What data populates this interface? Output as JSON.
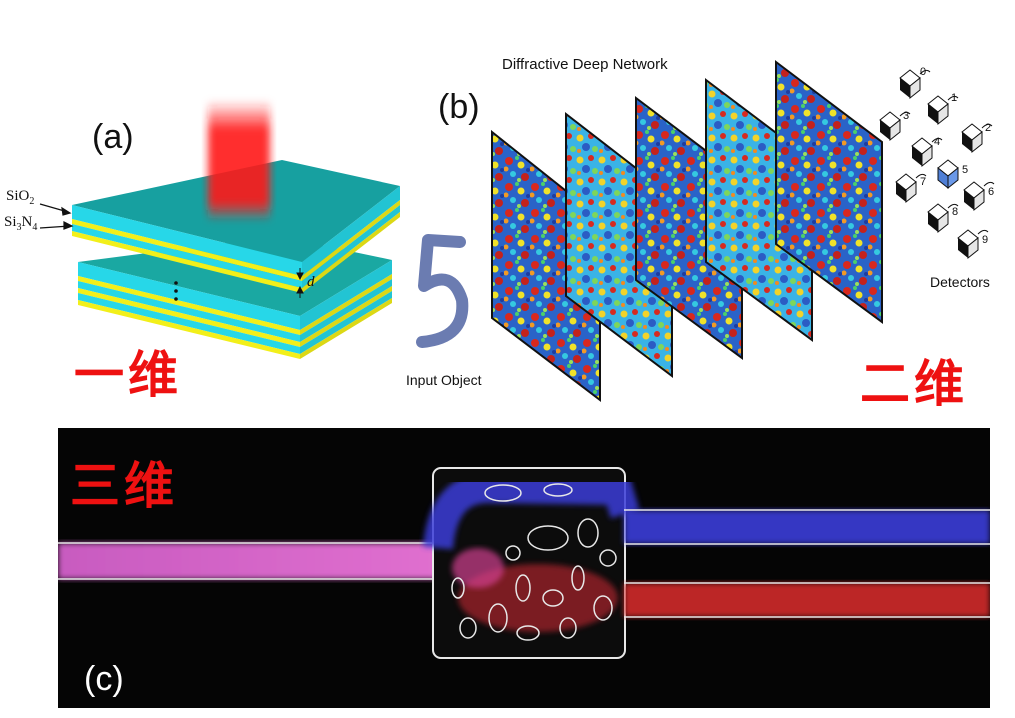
{
  "panel_a": {
    "label": "(a)",
    "sio2": "SiO",
    "sio2_sub": "2",
    "si3n4_a": "Si",
    "si3n4_sub1": "3",
    "si3n4_b": "N",
    "si3n4_sub2": "4",
    "d_label": "d",
    "dim_label": "一维",
    "colors": {
      "layer_teal": "#17a9a0",
      "layer_cyan": "#27d7e8",
      "layer_yellow": "#f2ef1a",
      "beam": "#ff1a1a"
    }
  },
  "panel_b": {
    "label": "(b)",
    "title": "Diffractive Deep Network",
    "input_label": "Input Object",
    "input_digit": "5",
    "detectors_label": "Detectors",
    "detector_numbers": [
      "0",
      "1",
      "2",
      "3",
      "4",
      "5",
      "6",
      "7",
      "8",
      "9"
    ],
    "dim_label": "二维",
    "colors": {
      "digit": "#5b6ea8",
      "highlight_detector": "#4f7fd6"
    }
  },
  "panel_c": {
    "label": "(c)",
    "dim_label": "三维",
    "colors": {
      "background": "#050505",
      "input_guide": "#d55fc4",
      "upper_output": "#3a3cd8",
      "lower_output": "#d02a2a",
      "outline": "#e8e8e8"
    }
  }
}
